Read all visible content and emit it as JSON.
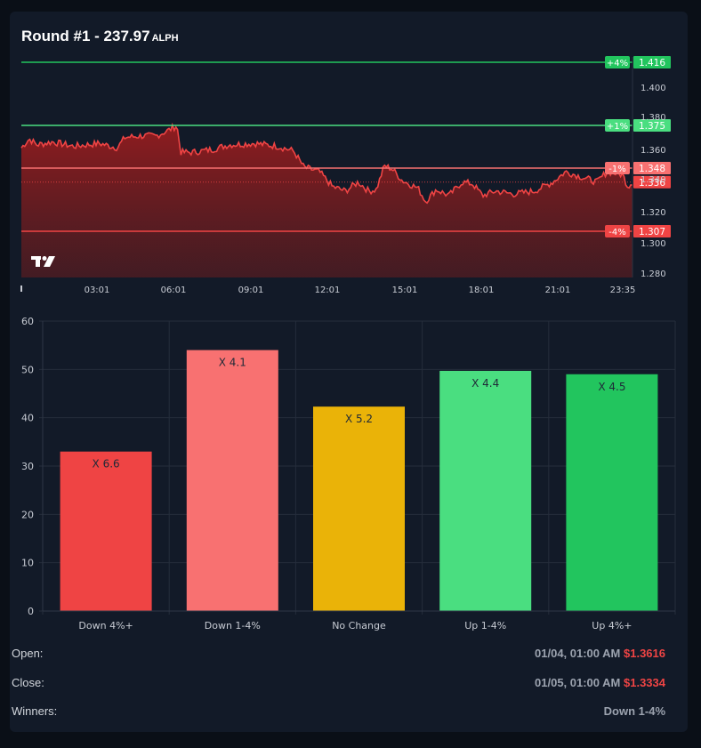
{
  "header": {
    "title_main": "Round #1 - 237.97",
    "title_unit": "ALPH"
  },
  "price_chart": {
    "y_ticks": [
      "1.400",
      "1.380",
      "1.360",
      "1.340",
      "1.320",
      "1.300",
      "1.280"
    ],
    "x_ticks": [
      "03:01",
      "06:01",
      "09:01",
      "12:01",
      "15:01",
      "18:01",
      "21:01",
      "23:35"
    ],
    "current_price": "1.336",
    "levels": [
      {
        "tag": "+4%",
        "value": "1.416",
        "color": "#22c55e"
      },
      {
        "tag": "+1%",
        "value": "1.375",
        "color": "#4ade80"
      },
      {
        "tag": "-1%",
        "value": "1.348",
        "color": "#f87171"
      },
      {
        "tag": "-4%",
        "value": "1.307",
        "color": "#ef4444"
      }
    ],
    "line_color": "#ef4444"
  },
  "chart_data": {
    "type": "bar",
    "categories": [
      "Down 4%+",
      "Down 1-4%",
      "No Change",
      "Up 1-4%",
      "Up 4%+"
    ],
    "values": [
      33,
      54,
      42.3,
      49.7,
      49
    ],
    "bar_labels": [
      "X 6.6",
      "X 4.1",
      "X 5.2",
      "X 4.4",
      "X 4.5"
    ],
    "colors": [
      "#ef4444",
      "#f87171",
      "#eab308",
      "#4ade80",
      "#22c55e"
    ],
    "ylim": [
      0,
      60
    ],
    "y_ticks": [
      "0",
      "10",
      "20",
      "30",
      "40",
      "50",
      "60"
    ],
    "grid": true
  },
  "info": {
    "open_label": "Open:",
    "open_time": "01/04, 01:00 AM",
    "open_price": "$1.3616",
    "close_label": "Close:",
    "close_time": "01/05, 01:00 AM",
    "close_price": "$1.3334",
    "winners_label": "Winners:",
    "winners_value": "Down 1-4%"
  }
}
